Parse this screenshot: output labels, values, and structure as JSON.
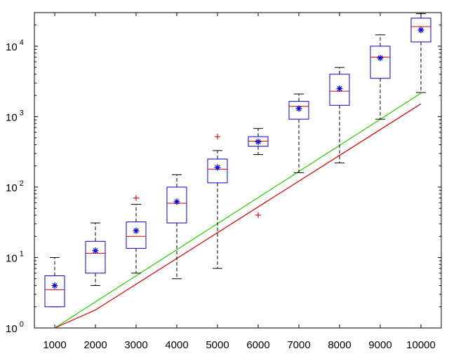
{
  "chart_data": {
    "type": "box",
    "title": "",
    "xlabel": "",
    "ylabel": "",
    "yscale": "log",
    "ylim": [
      1,
      30000
    ],
    "xlim": [
      500,
      10500
    ],
    "grid": false,
    "legend": "none",
    "categories": [
      1000,
      2000,
      3000,
      4000,
      5000,
      6000,
      7000,
      8000,
      9000,
      10000
    ],
    "x_tick_labels": [
      "1000",
      "2000",
      "3000",
      "4000",
      "5000",
      "6000",
      "7000",
      "8000",
      "9000",
      "10000"
    ],
    "y_ticks": [
      {
        "value": 1,
        "base": "10",
        "exp": "0"
      },
      {
        "value": 10,
        "base": "10",
        "exp": "1"
      },
      {
        "value": 100,
        "base": "10",
        "exp": "2"
      },
      {
        "value": 1000,
        "base": "10",
        "exp": "3"
      },
      {
        "value": 10000,
        "base": "10",
        "exp": "4"
      }
    ],
    "boxes": [
      {
        "x": 1000,
        "whisker_low": 2,
        "q1": 2,
        "median": 3.5,
        "q3": 5.5,
        "whisker_high": 10,
        "mean": 4,
        "outliers": []
      },
      {
        "x": 2000,
        "whisker_low": 4,
        "q1": 6,
        "median": 11.5,
        "q3": 17,
        "whisker_high": 31,
        "mean": 12.5,
        "outliers": []
      },
      {
        "x": 3000,
        "whisker_low": 6,
        "q1": 13.5,
        "median": 20,
        "q3": 32,
        "whisker_high": 57,
        "mean": 24,
        "outliers": [
          70
        ]
      },
      {
        "x": 4000,
        "whisker_low": 5,
        "q1": 31,
        "median": 59,
        "q3": 100,
        "whisker_high": 150,
        "mean": 62,
        "outliers": []
      },
      {
        "x": 5000,
        "whisker_low": 7,
        "q1": 115,
        "median": 180,
        "q3": 250,
        "whisker_high": 330,
        "mean": 190,
        "outliers": [
          520
        ]
      },
      {
        "x": 6000,
        "whisker_low": 290,
        "q1": 380,
        "median": 450,
        "q3": 520,
        "whisker_high": 680,
        "mean": 440,
        "outliers": [
          40
        ]
      },
      {
        "x": 7000,
        "whisker_low": 160,
        "q1": 920,
        "median": 1400,
        "q3": 1650,
        "whisker_high": 2100,
        "mean": 1300,
        "outliers": []
      },
      {
        "x": 8000,
        "whisker_low": 220,
        "q1": 1450,
        "median": 2300,
        "q3": 4000,
        "whisker_high": 5000,
        "mean": 2500,
        "outliers": []
      },
      {
        "x": 9000,
        "whisker_low": 920,
        "q1": 3500,
        "median": 7000,
        "q3": 10000,
        "whisker_high": 14500,
        "mean": 6800,
        "outliers": []
      },
      {
        "x": 10000,
        "whisker_low": 2200,
        "q1": 11500,
        "median": 19000,
        "q3": 25000,
        "whisker_high": 29000,
        "mean": 17000,
        "outliers": []
      }
    ],
    "series": [
      {
        "color": "#22cc00",
        "x": [
          1000,
          10000
        ],
        "y": [
          1,
          2150
        ]
      },
      {
        "color": "#cc0000",
        "x": [
          1000,
          2000,
          10000
        ],
        "y": [
          1,
          1.8,
          1520
        ]
      }
    ],
    "colors": {
      "box": "#0000cc",
      "median": "#cc0000",
      "mean_marker": "#0000cc",
      "whisker": "#000000",
      "outlier": "#cc0000"
    }
  }
}
